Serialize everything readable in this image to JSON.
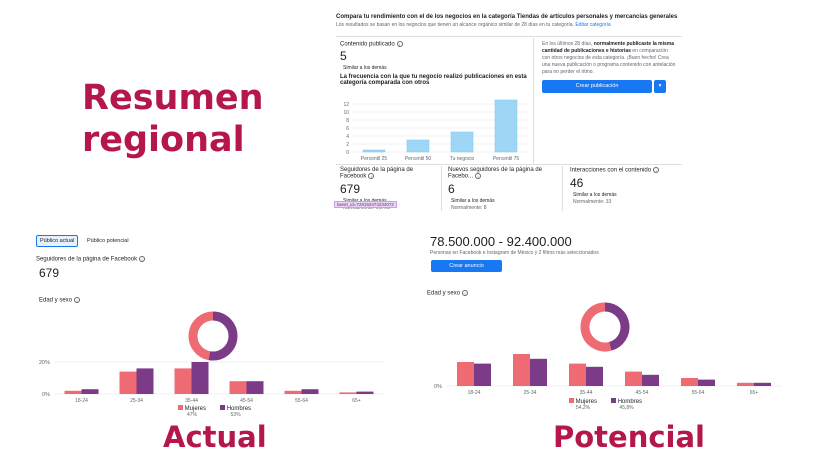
{
  "headings": {
    "resumen_line1": "Resumen",
    "resumen_line2": "regional",
    "actual": "Actual",
    "potencial": "Potencial"
  },
  "compare": {
    "title": "Compara tu rendimiento con el de los negocios en la categoría Tiendas de artículos personales y mercancías generales",
    "subtitle": "Los resultados se basan en los negocios que tienen un alcance orgánico similar de 28 días en tu categoría.",
    "edit_link": "Editar categoría",
    "content_label": "Contenido publicado",
    "content_value": "5",
    "content_note": "Similar a los demás",
    "freq_title": "La frecuencia con la que tu negocio realizó publicaciones en esta categoría comparada con otros",
    "side_text_prefix": "En los últimos 28 días, ",
    "side_text_bold": "normalmente publicaste la misma cantidad de publicaciones e historias",
    "side_text_suffix": " en comparación con otros negocios de esta categoría. ¡Buen hecho! Crea una nueva publicación o programa contenido con antelación para no perder el ritmo.",
    "create_button": "Crear publicación",
    "dropdown_icon": "chevron-down-icon"
  },
  "freq_chart": {
    "chart_data": {
      "type": "bar",
      "categories": [
        "Percentil 25",
        "Percentil 50",
        "Tu negocio",
        "Percentil 75"
      ],
      "values": [
        0.5,
        3,
        5,
        13
      ],
      "y_ticks": [
        "0",
        "2",
        "4",
        "6",
        "8",
        "10",
        "12"
      ],
      "ylim": [
        0,
        13
      ]
    }
  },
  "metrics": [
    {
      "label": "Seguidores de la página de Facebook",
      "value": "679",
      "note": "Similar a los demás",
      "normal": "Normalmente: 1,5 mil"
    },
    {
      "label": "Nuevos seguidores de la página de Facebo...",
      "value": "6",
      "note": "Similar a los demás",
      "normal": "Normalmente: 8"
    },
    {
      "label": "Interacciones con el contenido",
      "value": "46",
      "note": "Similar a los demás",
      "normal": "Normalmente: 33"
    }
  ],
  "tooltip_tag": "tweet_id=728192474234072",
  "actual": {
    "tabs": [
      "Público actual",
      "Público potencial"
    ],
    "followers_label": "Seguidores de la página de Facebook",
    "followers_value": "679",
    "age_label": "Edad y sexo",
    "y_ticks": [
      "20%",
      "0%"
    ],
    "legend": [
      {
        "name": "Mujeres",
        "pct": "47%",
        "color": "#ee6b74"
      },
      {
        "name": "Hombres",
        "pct": "53%",
        "color": "#7b3b87"
      }
    ],
    "chart_data": {
      "type": "bar",
      "categories": [
        "18-24",
        "25-34",
        "35-44",
        "45-54",
        "55-64",
        "65+"
      ],
      "series": [
        {
          "name": "Mujeres",
          "values": [
            2,
            14,
            16,
            8,
            2,
            1
          ]
        },
        {
          "name": "Hombres",
          "values": [
            3,
            16,
            20,
            8,
            3,
            1.5
          ]
        }
      ],
      "ylim": [
        0,
        20
      ]
    },
    "donut": {
      "mujeres": 47,
      "hombres": 53
    }
  },
  "potencial": {
    "range": "78.500.000 - 92.400.000",
    "range_note": "Personas en Facebook e Instagram de México y 2 filtros más seleccionados",
    "create_ad": "Crear anuncio",
    "age_label": "Edad y sexo",
    "y_ticks": [
      "0%"
    ],
    "legend": [
      {
        "name": "Mujeres",
        "pct": "54,2%",
        "color": "#ee6b74"
      },
      {
        "name": "Hombres",
        "pct": "45,8%",
        "color": "#7b3b87"
      }
    ],
    "chart_data": {
      "type": "bar",
      "categories": [
        "18-24",
        "25-34",
        "35-44",
        "45-54",
        "55-64",
        "65+"
      ],
      "series": [
        {
          "name": "Mujeres",
          "values": [
            15,
            20,
            14,
            9,
            5,
            2
          ]
        },
        {
          "name": "Hombres",
          "values": [
            14,
            17,
            12,
            7,
            4,
            2
          ]
        }
      ],
      "ylim": [
        0,
        20
      ]
    },
    "donut": {
      "mujeres": 54.2,
      "hombres": 45.8
    }
  }
}
